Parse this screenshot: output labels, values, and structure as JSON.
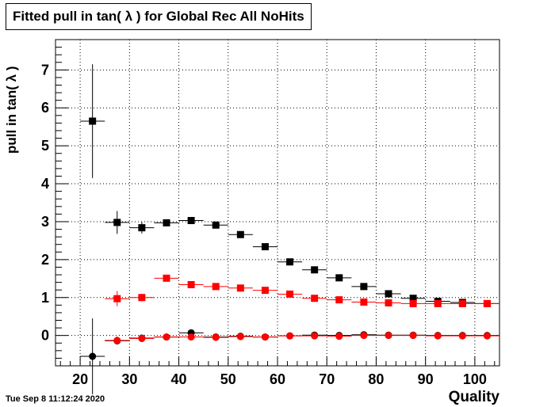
{
  "header": {
    "title": "Fitted pull in tan( λ ) for Global Rec All NoHits"
  },
  "footer": {
    "timestamp": "Tue Sep  8 11:12:24 2020"
  },
  "chart_data": {
    "type": "scatter",
    "title": "Fitted pull in tan( λ ) for Global Rec All NoHits",
    "xlabel": "Quality",
    "ylabel": "pull in tan( λ )",
    "xlim": [
      15,
      105
    ],
    "ylim": [
      -0.8,
      7.8
    ],
    "x_ticks": [
      20,
      30,
      40,
      50,
      60,
      70,
      80,
      90,
      100
    ],
    "y_ticks": [
      0,
      1,
      2,
      3,
      4,
      5,
      6,
      7
    ],
    "grid": true,
    "legend": "none",
    "bin_half_width": 2.5,
    "series": [
      {
        "marker": "square",
        "color": "#000000",
        "points": [
          {
            "x": 22.5,
            "y": 5.65,
            "yerr": 1.5
          },
          {
            "x": 27.5,
            "y": 2.98,
            "yerr": 0.3
          },
          {
            "x": 32.5,
            "y": 2.84,
            "yerr": 0.15
          },
          {
            "x": 37.5,
            "y": 2.97,
            "yerr": 0.08
          },
          {
            "x": 42.5,
            "y": 3.03,
            "yerr": 0.06
          },
          {
            "x": 47.5,
            "y": 2.91,
            "yerr": 0.05
          },
          {
            "x": 52.5,
            "y": 2.66,
            "yerr": 0.04
          },
          {
            "x": 57.5,
            "y": 2.34,
            "yerr": 0.04
          },
          {
            "x": 62.5,
            "y": 1.94,
            "yerr": 0.03
          },
          {
            "x": 67.5,
            "y": 1.73,
            "yerr": 0.03
          },
          {
            "x": 72.5,
            "y": 1.52,
            "yerr": 0.02
          },
          {
            "x": 77.5,
            "y": 1.29,
            "yerr": 0.02
          },
          {
            "x": 82.5,
            "y": 1.1,
            "yerr": 0.02
          },
          {
            "x": 87.5,
            "y": 0.98,
            "yerr": 0.02
          },
          {
            "x": 92.5,
            "y": 0.9,
            "yerr": 0.02
          },
          {
            "x": 97.5,
            "y": 0.87,
            "yerr": 0.02
          },
          {
            "x": 102.5,
            "y": 0.84,
            "yerr": 0.02
          }
        ]
      },
      {
        "marker": "circle",
        "color": "#000000",
        "points": [
          {
            "x": 22.5,
            "y": -0.55,
            "yerr": 1.0
          },
          {
            "x": 27.5,
            "y": -0.14,
            "yerr": 0.1
          },
          {
            "x": 32.5,
            "y": -0.07,
            "yerr": 0.08
          },
          {
            "x": 37.5,
            "y": -0.04,
            "yerr": 0.05
          },
          {
            "x": 42.5,
            "y": 0.07,
            "yerr": 0.04
          },
          {
            "x": 47.5,
            "y": -0.04,
            "yerr": 0.03
          },
          {
            "x": 52.5,
            "y": -0.02,
            "yerr": 0.03
          },
          {
            "x": 57.5,
            "y": -0.04,
            "yerr": 0.02
          },
          {
            "x": 62.5,
            "y": -0.01,
            "yerr": 0.02
          },
          {
            "x": 67.5,
            "y": 0.01,
            "yerr": 0.02
          },
          {
            "x": 72.5,
            "y": 0.0,
            "yerr": 0.02
          },
          {
            "x": 77.5,
            "y": 0.02,
            "yerr": 0.02
          },
          {
            "x": 82.5,
            "y": 0.01,
            "yerr": 0.02
          },
          {
            "x": 87.5,
            "y": 0.01,
            "yerr": 0.02
          },
          {
            "x": 92.5,
            "y": 0.0,
            "yerr": 0.02
          },
          {
            "x": 97.5,
            "y": 0.0,
            "yerr": 0.02
          },
          {
            "x": 102.5,
            "y": 0.0,
            "yerr": 0.02
          }
        ]
      },
      {
        "marker": "square",
        "color": "#ff0000",
        "points": [
          {
            "x": 27.5,
            "y": 0.97,
            "yerr": 0.2
          },
          {
            "x": 32.5,
            "y": 1.0,
            "yerr": 0.1
          },
          {
            "x": 37.5,
            "y": 1.51,
            "yerr": 0.08
          },
          {
            "x": 42.5,
            "y": 1.34,
            "yerr": 0.05
          },
          {
            "x": 47.5,
            "y": 1.29,
            "yerr": 0.04
          },
          {
            "x": 52.5,
            "y": 1.25,
            "yerr": 0.03
          },
          {
            "x": 57.5,
            "y": 1.19,
            "yerr": 0.03
          },
          {
            "x": 62.5,
            "y": 1.09,
            "yerr": 0.03
          },
          {
            "x": 67.5,
            "y": 0.98,
            "yerr": 0.02
          },
          {
            "x": 72.5,
            "y": 0.94,
            "yerr": 0.02
          },
          {
            "x": 77.5,
            "y": 0.88,
            "yerr": 0.02
          },
          {
            "x": 82.5,
            "y": 0.86,
            "yerr": 0.02
          },
          {
            "x": 87.5,
            "y": 0.84,
            "yerr": 0.02
          },
          {
            "x": 92.5,
            "y": 0.84,
            "yerr": 0.02
          },
          {
            "x": 97.5,
            "y": 0.84,
            "yerr": 0.02
          },
          {
            "x": 102.5,
            "y": 0.84,
            "yerr": 0.02
          }
        ]
      },
      {
        "marker": "circle",
        "color": "#ff0000",
        "points": [
          {
            "x": 27.5,
            "y": -0.13,
            "yerr": 0.1
          },
          {
            "x": 32.5,
            "y": -0.08,
            "yerr": 0.08
          },
          {
            "x": 37.5,
            "y": -0.04,
            "yerr": 0.05
          },
          {
            "x": 42.5,
            "y": -0.04,
            "yerr": 0.04
          },
          {
            "x": 47.5,
            "y": -0.05,
            "yerr": 0.03
          },
          {
            "x": 52.5,
            "y": -0.03,
            "yerr": 0.03
          },
          {
            "x": 57.5,
            "y": -0.04,
            "yerr": 0.02
          },
          {
            "x": 62.5,
            "y": -0.01,
            "yerr": 0.02
          },
          {
            "x": 67.5,
            "y": -0.01,
            "yerr": 0.02
          },
          {
            "x": 72.5,
            "y": -0.02,
            "yerr": 0.02
          },
          {
            "x": 77.5,
            "y": 0.0,
            "yerr": 0.02
          },
          {
            "x": 82.5,
            "y": 0.0,
            "yerr": 0.02
          },
          {
            "x": 87.5,
            "y": 0.0,
            "yerr": 0.02
          },
          {
            "x": 92.5,
            "y": -0.01,
            "yerr": 0.02
          },
          {
            "x": 97.5,
            "y": -0.01,
            "yerr": 0.02
          },
          {
            "x": 102.5,
            "y": -0.01,
            "yerr": 0.02
          }
        ]
      }
    ]
  }
}
